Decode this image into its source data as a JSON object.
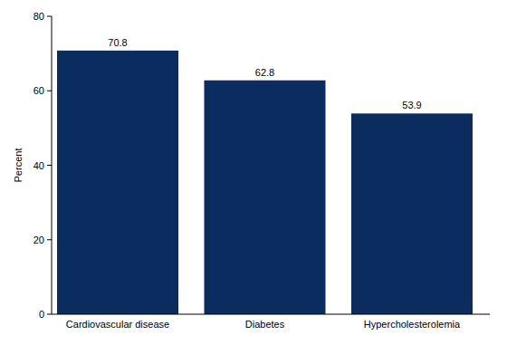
{
  "chart_data": {
    "type": "bar",
    "ylabel": "Percent",
    "categories": [
      "Cardiovascular disease",
      "Diabetes",
      "Hypercholesterolemia"
    ],
    "values": [
      70.8,
      62.8,
      53.9
    ],
    "color": "#0b2c5f",
    "ylim": [
      0,
      80
    ],
    "yticks": [
      0,
      20,
      40,
      60,
      80
    ],
    "grid": false,
    "data_labels": true
  }
}
